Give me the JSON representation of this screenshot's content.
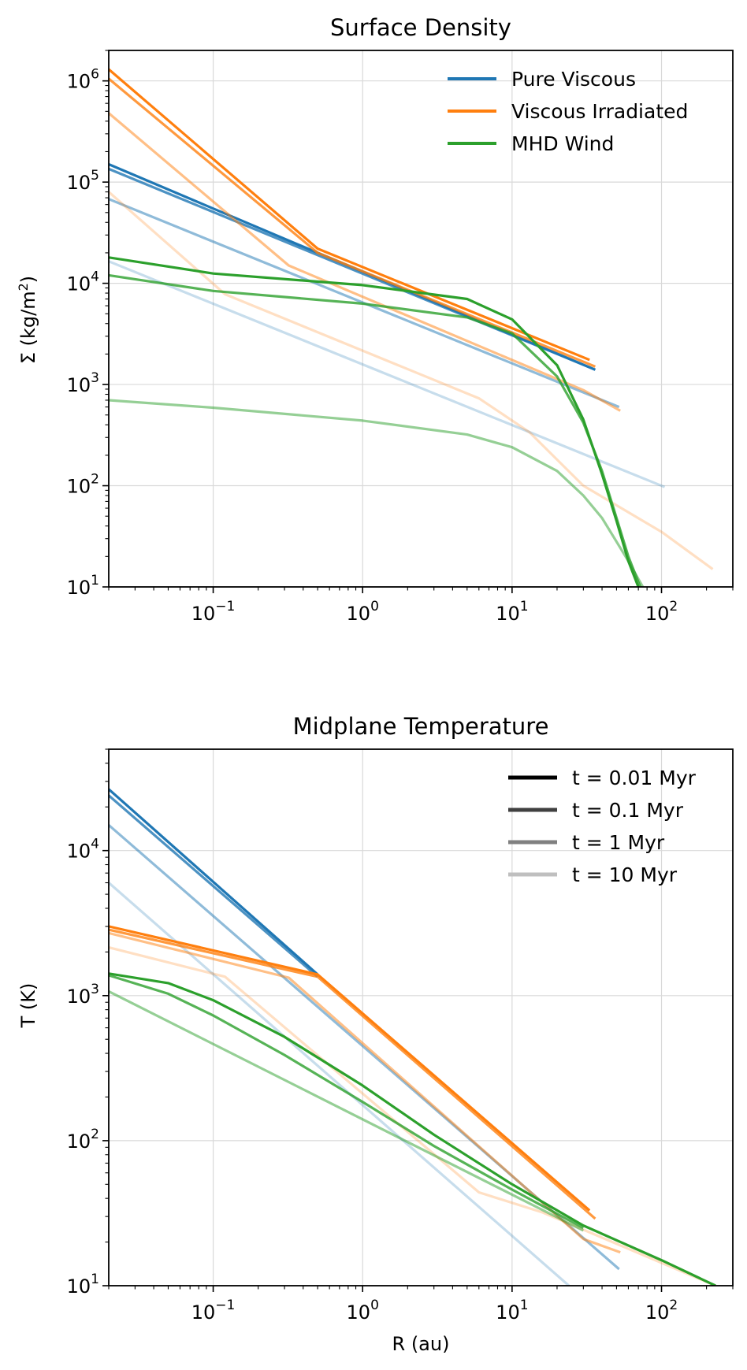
{
  "chart_data": [
    {
      "type": "line",
      "title": "Surface Density",
      "xlabel": "",
      "ylabel_prefix": "Σ (kg/m",
      "ylabel_sup": "2",
      "ylabel_suffix": ")",
      "xscale": "log",
      "yscale": "log",
      "xlim": [
        0.02,
        300
      ],
      "ylim": [
        10,
        2000000
      ],
      "grid": true,
      "xticks": [
        {
          "value": 0.1,
          "base": "10",
          "exp": "−1"
        },
        {
          "value": 1,
          "base": "10",
          "exp": "0"
        },
        {
          "value": 10,
          "base": "10",
          "exp": "1"
        },
        {
          "value": 100,
          "base": "10",
          "exp": "2"
        }
      ],
      "yticks": [
        {
          "value": 10,
          "base": "10",
          "exp": "1"
        },
        {
          "value": 100,
          "base": "10",
          "exp": "2"
        },
        {
          "value": 1000,
          "base": "10",
          "exp": "3"
        },
        {
          "value": 10000,
          "base": "10",
          "exp": "4"
        },
        {
          "value": 100000,
          "base": "10",
          "exp": "5"
        },
        {
          "value": 1000000,
          "base": "10",
          "exp": "6"
        }
      ],
      "legend": {
        "placement": "top-right",
        "entries": [
          {
            "label": "Pure Viscous",
            "color": "#1f77b4"
          },
          {
            "label": "Viscous Irradiated",
            "color": "#ff7f0e"
          },
          {
            "label": "MHD Wind",
            "color": "#2ca02c"
          }
        ]
      },
      "series": [
        {
          "name": "Pure Viscous t=0.01 Myr",
          "color": "#1f77b4",
          "alpha": 1.0,
          "x": [
            0.02,
            0.5,
            36
          ],
          "y": [
            150000,
            20000,
            1400
          ]
        },
        {
          "name": "Pure Viscous t=0.1 Myr",
          "color": "#1f77b4",
          "alpha": 0.8,
          "x": [
            0.02,
            0.5,
            36
          ],
          "y": [
            135000,
            19000,
            1400
          ]
        },
        {
          "name": "Pure Viscous t=1 Myr",
          "color": "#1f77b4",
          "alpha": 0.5,
          "x": [
            0.02,
            52
          ],
          "y": [
            68000,
            600
          ]
        },
        {
          "name": "Pure Viscous t=10 Myr",
          "color": "#1f77b4",
          "alpha": 0.25,
          "x": [
            0.02,
            105
          ],
          "y": [
            16500,
            97
          ]
        },
        {
          "name": "Viscous Irradiated t=0.01 Myr",
          "color": "#ff7f0e",
          "alpha": 1.0,
          "x": [
            0.02,
            0.5,
            33
          ],
          "y": [
            1300000,
            22000,
            1750
          ]
        },
        {
          "name": "Viscous Irradiated t=0.1 Myr",
          "color": "#ff7f0e",
          "alpha": 0.8,
          "x": [
            0.02,
            0.5,
            36
          ],
          "y": [
            1050000,
            20000,
            1500
          ]
        },
        {
          "name": "Viscous Irradiated t=1 Myr",
          "color": "#ff7f0e",
          "alpha": 0.5,
          "x": [
            0.02,
            0.32,
            30,
            53
          ],
          "y": [
            480000,
            15000,
            880,
            550
          ]
        },
        {
          "name": "Viscous Irradiated t=10 Myr",
          "color": "#ff7f0e",
          "alpha": 0.25,
          "x": [
            0.02,
            0.12,
            6,
            13,
            30,
            100,
            220
          ],
          "y": [
            80000,
            7800,
            730,
            340,
            100,
            35,
            15
          ]
        },
        {
          "name": "MHD Wind t=0.01 Myr",
          "color": "#2ca02c",
          "alpha": 1.0,
          "x": [
            0.02,
            0.1,
            1,
            5,
            10,
            20,
            30,
            40,
            50,
            60,
            70
          ],
          "y": [
            18000,
            12500,
            9600,
            7000,
            4400,
            1550,
            450,
            130,
            45,
            18,
            10
          ]
        },
        {
          "name": "MHD Wind t=0.1 Myr",
          "color": "#2ca02c",
          "alpha": 0.8,
          "x": [
            0.02,
            0.1,
            1,
            5,
            10,
            20,
            30,
            40,
            50,
            60,
            72
          ],
          "y": [
            12000,
            8400,
            6300,
            4600,
            3200,
            1200,
            420,
            140,
            48,
            20,
            10
          ]
        },
        {
          "name": "MHD Wind t=10 Myr",
          "color": "#2ca02c",
          "alpha": 0.5,
          "x": [
            0.02,
            0.1,
            1,
            5,
            10,
            20,
            30,
            40,
            50,
            60,
            75
          ],
          "y": [
            700,
            590,
            440,
            320,
            240,
            140,
            80,
            48,
            28,
            18,
            10
          ]
        }
      ]
    },
    {
      "type": "line",
      "title": "Midplane Temperature",
      "xlabel": "R (au)",
      "ylabel": "T (K)",
      "xscale": "log",
      "yscale": "log",
      "xlim": [
        0.02,
        300
      ],
      "ylim": [
        10,
        50000
      ],
      "grid": true,
      "xticks": [
        {
          "value": 0.1,
          "base": "10",
          "exp": "−1"
        },
        {
          "value": 1,
          "base": "10",
          "exp": "0"
        },
        {
          "value": 10,
          "base": "10",
          "exp": "1"
        },
        {
          "value": 100,
          "base": "10",
          "exp": "2"
        }
      ],
      "yticks": [
        {
          "value": 10,
          "base": "10",
          "exp": "1"
        },
        {
          "value": 100,
          "base": "10",
          "exp": "2"
        },
        {
          "value": 1000,
          "base": "10",
          "exp": "3"
        },
        {
          "value": 10000,
          "base": "10",
          "exp": "4"
        }
      ],
      "legend": {
        "placement": "top-right",
        "entries": [
          {
            "label": "t = 0.01 Myr",
            "color": "#000000"
          },
          {
            "label": "t = 0.1 Myr",
            "color": "#404040"
          },
          {
            "label": "t = 1 Myr",
            "color": "#808080"
          },
          {
            "label": "t = 10 Myr",
            "color": "#bfbfbf"
          }
        ]
      },
      "series": [
        {
          "name": "Pure Viscous t=0.01 Myr",
          "color": "#1f77b4",
          "alpha": 1.0,
          "x": [
            0.02,
            0.5
          ],
          "y": [
            26500,
            1400
          ]
        },
        {
          "name": "Pure Viscous t=0.1 Myr",
          "color": "#1f77b4",
          "alpha": 0.8,
          "x": [
            0.02,
            0.5
          ],
          "y": [
            24000,
            1350
          ]
        },
        {
          "name": "Pure Viscous t=1 Myr",
          "color": "#1f77b4",
          "alpha": 0.5,
          "x": [
            0.02,
            52
          ],
          "y": [
            15000,
            13
          ]
        },
        {
          "name": "Pure Viscous t=10 Myr",
          "color": "#1f77b4",
          "alpha": 0.25,
          "x": [
            0.02,
            24
          ],
          "y": [
            6000,
            10
          ]
        },
        {
          "name": "Viscous Irradiated t=0.01 Myr",
          "color": "#ff7f0e",
          "alpha": 1.0,
          "x": [
            0.02,
            0.5,
            33
          ],
          "y": [
            3000,
            1400,
            33
          ]
        },
        {
          "name": "Viscous Irradiated t=0.1 Myr",
          "color": "#ff7f0e",
          "alpha": 0.8,
          "x": [
            0.02,
            0.5,
            36
          ],
          "y": [
            2850,
            1350,
            29
          ]
        },
        {
          "name": "Viscous Irradiated t=1 Myr",
          "color": "#ff7f0e",
          "alpha": 0.5,
          "x": [
            0.02,
            0.32,
            30,
            53
          ],
          "y": [
            2700,
            1330,
            21,
            17
          ]
        },
        {
          "name": "Viscous Irradiated t=10 Myr",
          "color": "#ff7f0e",
          "alpha": 0.25,
          "x": [
            0.02,
            0.12,
            6,
            16,
            230
          ],
          "y": [
            2150,
            1350,
            44,
            32,
            10
          ]
        },
        {
          "name": "MHD Wind t=0.01 Myr",
          "color": "#2ca02c",
          "alpha": 1.0,
          "x": [
            0.02,
            0.05,
            0.1,
            0.3,
            1,
            3,
            10,
            30,
            100,
            230
          ],
          "y": [
            1420,
            1220,
            930,
            520,
            240,
            110,
            50,
            26,
            15,
            10
          ]
        },
        {
          "name": "MHD Wind t=0.1 Myr",
          "color": "#2ca02c",
          "alpha": 0.8,
          "x": [
            0.02,
            0.05,
            0.1,
            0.3,
            1,
            3,
            10,
            30
          ],
          "y": [
            1380,
            1030,
            730,
            390,
            185,
            92,
            46,
            25
          ]
        },
        {
          "name": "MHD Wind t=1 Myr",
          "color": "#2ca02c",
          "alpha": 0.5,
          "x": [
            0.02,
            30
          ],
          "y": [
            1070,
            24
          ]
        }
      ]
    }
  ]
}
